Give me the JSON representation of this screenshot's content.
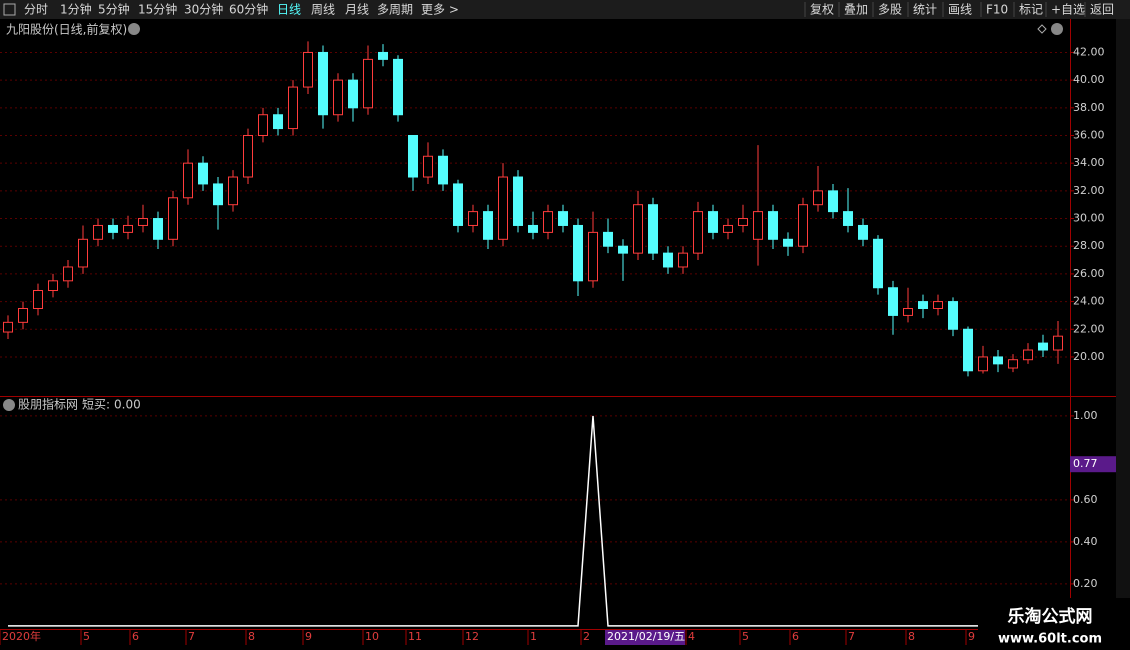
{
  "toolbar": {
    "periods": [
      "分时",
      "1分钟",
      "5分钟",
      "15分钟",
      "30分钟",
      "60分钟",
      "日线",
      "周线",
      "月线",
      "多周期",
      "更多 >"
    ],
    "active_index": 6,
    "tools": [
      "复权",
      "叠加",
      "多股",
      "统计",
      "画线",
      "F10",
      "标记",
      "+自选",
      "返回"
    ]
  },
  "chart_data": [
    {
      "type": "candlestick",
      "title": "九阳股份(日线,前复权)",
      "up_color": "#ff3c3c",
      "down_color": "#54fcfc",
      "grid": true,
      "open": [
        21.8,
        22.5,
        23.5,
        24.8,
        25.5,
        26.5,
        28.5,
        29.5,
        29,
        29.5,
        30,
        28.5,
        31.5,
        34,
        32.5,
        31,
        33,
        36,
        37.5,
        36.5,
        39.5,
        42,
        37.5,
        40,
        38,
        42,
        41.5,
        36,
        33,
        34.5,
        32.5,
        29.5,
        30.5,
        28.5,
        33,
        29.5,
        29,
        30.5,
        29.5,
        25.5,
        29,
        28,
        27.5,
        31,
        27.5,
        26.5,
        27.5,
        30.5,
        29,
        29.5,
        28.5,
        30.5,
        28.5,
        28,
        31,
        32,
        30.5,
        29.5,
        28.5,
        25,
        23,
        24,
        23.5,
        24,
        22,
        19,
        20,
        19.2,
        19.8,
        21,
        20.5
      ],
      "high": [
        23,
        24,
        25.3,
        26,
        27,
        29.5,
        30,
        30,
        30.2,
        31,
        30.5,
        32,
        35,
        34.5,
        33,
        33.5,
        36.5,
        38,
        38,
        40,
        42.8,
        42.5,
        40.5,
        40.5,
        42.5,
        42.6,
        41.8,
        36,
        35.5,
        35,
        32.8,
        31,
        31,
        34,
        33.5,
        30.5,
        31,
        31,
        30,
        30.5,
        30,
        28.5,
        32,
        31.5,
        28,
        28,
        31.2,
        31,
        30,
        31,
        35.3,
        31,
        29,
        31.5,
        33.8,
        32.5,
        32.2,
        30,
        28.8,
        25.5,
        25,
        24.5,
        24.5,
        24.3,
        22.2,
        20.8,
        20.5,
        20.2,
        21,
        21.6,
        22.6
      ],
      "low": [
        21.3,
        22,
        23,
        24.3,
        25,
        26,
        28,
        28.5,
        28.5,
        29,
        27.8,
        28,
        31,
        32,
        29.2,
        30.5,
        32.5,
        35.5,
        36,
        36,
        39,
        36.5,
        37,
        37,
        37.5,
        41,
        37,
        32,
        32.5,
        32,
        29,
        29,
        27.8,
        28,
        29,
        28.5,
        28.5,
        29,
        24.4,
        25,
        27.5,
        25.5,
        27,
        27,
        26,
        26,
        27,
        28.5,
        28.5,
        29,
        26.6,
        27.8,
        27.3,
        27.5,
        30.5,
        30,
        29,
        28,
        24.5,
        21.6,
        22.5,
        22.8,
        23,
        21.5,
        18.6,
        18.8,
        18.9,
        18.9,
        19.5,
        20,
        19.5
      ],
      "close": [
        22.5,
        23.5,
        24.8,
        25.5,
        26.5,
        28.5,
        29.5,
        29,
        29.5,
        30,
        28.5,
        31.5,
        34,
        32.5,
        31,
        33,
        36,
        37.5,
        36.5,
        39.5,
        42,
        37.5,
        40,
        38,
        41.5,
        41.5,
        37.5,
        33,
        34.5,
        32.5,
        29.5,
        30.5,
        28.5,
        33,
        29.5,
        29,
        30.5,
        29.5,
        25.5,
        29,
        28,
        27.5,
        31,
        27.5,
        26.5,
        27.5,
        30.5,
        29,
        29.5,
        30,
        30.5,
        28.5,
        28,
        31,
        32,
        30.5,
        29.5,
        28.5,
        25,
        23,
        23.5,
        23.5,
        24,
        22,
        19,
        20,
        19.5,
        19.8,
        20.5,
        20.5,
        21.5
      ],
      "ylim": [
        17.25,
        42.9
      ],
      "yticks": [
        {
          "value": 20,
          "label": "20.00"
        },
        {
          "value": 22,
          "label": "22.00"
        },
        {
          "value": 24,
          "label": "24.00"
        },
        {
          "value": 26,
          "label": "26.00"
        },
        {
          "value": 28,
          "label": "28.00"
        },
        {
          "value": 30,
          "label": "30.00"
        },
        {
          "value": 32,
          "label": "32.00"
        },
        {
          "value": 34,
          "label": "34.00"
        },
        {
          "value": 36,
          "label": "36.00"
        },
        {
          "value": 38,
          "label": "38.00"
        },
        {
          "value": 40,
          "label": "40.00"
        },
        {
          "value": 42,
          "label": "42.00"
        }
      ]
    },
    {
      "type": "line",
      "title": "股朋指标网",
      "grid": true,
      "series": [
        {
          "name": "短买",
          "color": "#ffffff",
          "values": [
            0,
            0,
            0,
            0,
            0,
            0,
            0,
            0,
            0,
            0,
            0,
            0,
            0,
            0,
            0,
            0,
            0,
            0,
            0,
            0,
            0,
            0,
            0,
            0,
            0,
            0,
            0,
            0,
            0,
            0,
            0,
            0,
            0,
            0,
            0,
            0,
            0,
            0,
            0,
            1,
            0,
            0,
            0,
            0,
            0,
            0,
            0,
            0,
            0,
            0,
            0,
            0,
            0,
            0,
            0,
            0,
            0,
            0,
            0,
            0,
            0,
            0,
            0,
            0,
            0,
            0,
            0,
            0,
            0,
            0,
            0
          ],
          "last_value": {
            "value": 0,
            "label": "0.00"
          }
        }
      ],
      "cursor_value": 0.77,
      "ylim": [
        -0.01,
        1.09
      ],
      "yticks": [
        {
          "value": 0.2,
          "label": "0.20"
        },
        {
          "value": 0.4,
          "label": "0.40"
        },
        {
          "value": 0.6,
          "label": "0.60"
        },
        {
          "value": 1,
          "label": "1.00"
        }
      ]
    }
  ],
  "date_axis": {
    "labels": [
      "2020年",
      5,
      6,
      7,
      8,
      9,
      10,
      11,
      12,
      1,
      2,
      4,
      5,
      6,
      7,
      8,
      9
    ],
    "highlight": "2021/02/19/五"
  },
  "watermark": {
    "name": "乐淘公式网",
    "url": "www.60lt.com"
  }
}
